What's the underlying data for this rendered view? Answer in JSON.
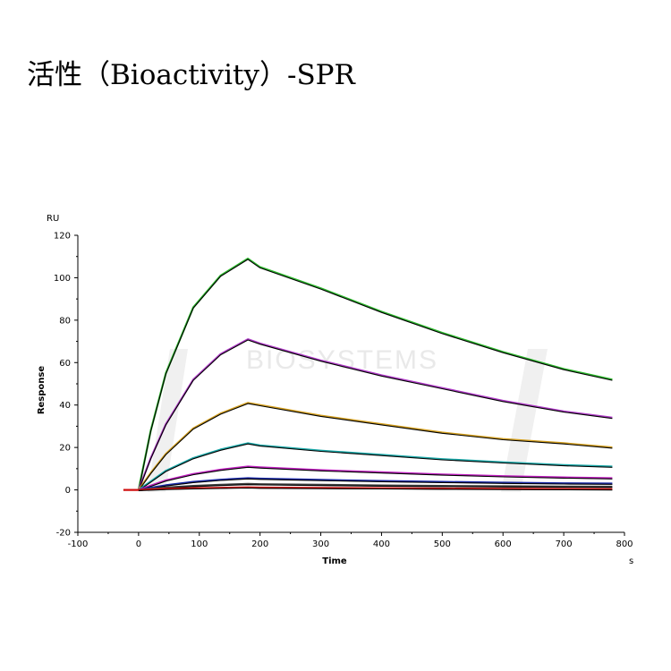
{
  "page": {
    "title": "活性（Bioactivity）-SPR"
  },
  "chart_data": {
    "type": "line",
    "title": "",
    "xlabel": "Time",
    "ylabel": "Response",
    "x_unit": "s",
    "y_unit": "RU",
    "xlim": [
      -100,
      800
    ],
    "ylim": [
      -20,
      120
    ],
    "xticks": [
      -100,
      0,
      100,
      200,
      300,
      400,
      500,
      600,
      700,
      800
    ],
    "yticks": [
      -20,
      0,
      20,
      40,
      60,
      80,
      100,
      120
    ],
    "grid": false,
    "legend": "none",
    "watermark": "BIOSYSTEMS",
    "association_phase": [
      0,
      180
    ],
    "dissociation_phase": [
      180,
      780
    ],
    "series": [
      {
        "color": "#2db82d",
        "fit_color": "#000000",
        "peak_response": 109,
        "end_response": 52,
        "points": [
          [
            0,
            0
          ],
          [
            20,
            28
          ],
          [
            45,
            55
          ],
          [
            90,
            86
          ],
          [
            135,
            101
          ],
          [
            180,
            109
          ],
          [
            200,
            105
          ],
          [
            300,
            95
          ],
          [
            400,
            84
          ],
          [
            500,
            74
          ],
          [
            600,
            65
          ],
          [
            700,
            57
          ],
          [
            780,
            52
          ]
        ]
      },
      {
        "color": "#b03cc8",
        "fit_color": "#000000",
        "peak_response": 71,
        "end_response": 34,
        "points": [
          [
            0,
            0
          ],
          [
            20,
            15
          ],
          [
            45,
            31
          ],
          [
            90,
            52
          ],
          [
            135,
            64
          ],
          [
            180,
            71
          ],
          [
            200,
            69
          ],
          [
            300,
            61
          ],
          [
            400,
            54
          ],
          [
            500,
            48
          ],
          [
            600,
            42
          ],
          [
            700,
            37
          ],
          [
            780,
            34
          ]
        ]
      },
      {
        "color": "#d4a020",
        "fit_color": "#000000",
        "peak_response": 41,
        "end_response": 20,
        "points": [
          [
            0,
            0
          ],
          [
            20,
            8
          ],
          [
            45,
            17
          ],
          [
            90,
            29
          ],
          [
            135,
            36
          ],
          [
            180,
            41
          ],
          [
            200,
            40
          ],
          [
            300,
            35
          ],
          [
            400,
            31
          ],
          [
            500,
            27
          ],
          [
            600,
            24
          ],
          [
            700,
            22
          ],
          [
            780,
            20
          ]
        ]
      },
      {
        "color": "#1aa8a8",
        "fit_color": "#000000",
        "peak_response": 22,
        "end_response": 11,
        "points": [
          [
            0,
            0
          ],
          [
            20,
            4
          ],
          [
            45,
            9
          ],
          [
            90,
            15
          ],
          [
            135,
            19
          ],
          [
            180,
            22
          ],
          [
            200,
            21
          ],
          [
            300,
            18.5
          ],
          [
            400,
            16.5
          ],
          [
            500,
            14.5
          ],
          [
            600,
            13
          ],
          [
            700,
            11.7
          ],
          [
            780,
            11
          ]
        ]
      },
      {
        "color": "#c020c0",
        "fit_color": "#000000",
        "peak_response": 11,
        "end_response": 5.5,
        "points": [
          [
            0,
            0
          ],
          [
            20,
            2
          ],
          [
            45,
            4.5
          ],
          [
            90,
            7.5
          ],
          [
            135,
            9.5
          ],
          [
            180,
            11
          ],
          [
            200,
            10.6
          ],
          [
            300,
            9.3
          ],
          [
            400,
            8.3
          ],
          [
            500,
            7.3
          ],
          [
            600,
            6.5
          ],
          [
            700,
            5.9
          ],
          [
            780,
            5.5
          ]
        ]
      },
      {
        "color": "#1a2aa8",
        "fit_color": "#000000",
        "peak_response": 5.5,
        "end_response": 3,
        "points": [
          [
            0,
            0
          ],
          [
            20,
            1
          ],
          [
            45,
            2.2
          ],
          [
            90,
            3.8
          ],
          [
            135,
            4.8
          ],
          [
            180,
            5.5
          ],
          [
            200,
            5.3
          ],
          [
            300,
            4.7
          ],
          [
            400,
            4.2
          ],
          [
            500,
            3.8
          ],
          [
            600,
            3.4
          ],
          [
            700,
            3.1
          ],
          [
            780,
            3
          ]
        ]
      },
      {
        "color": "#404040",
        "fit_color": "#000000",
        "peak_response": 2.8,
        "end_response": 1.5,
        "points": [
          [
            0,
            0
          ],
          [
            20,
            0.5
          ],
          [
            45,
            1.1
          ],
          [
            90,
            1.9
          ],
          [
            135,
            2.4
          ],
          [
            180,
            2.8
          ],
          [
            200,
            2.7
          ],
          [
            300,
            2.4
          ],
          [
            400,
            2.1
          ],
          [
            500,
            1.9
          ],
          [
            600,
            1.7
          ],
          [
            700,
            1.6
          ],
          [
            780,
            1.5
          ]
        ]
      },
      {
        "color": "#d01010",
        "fit_color": "#000000",
        "peak_response": 1.2,
        "end_response": 0.3,
        "points": [
          [
            -25,
            0
          ],
          [
            0,
            0
          ],
          [
            45,
            0.5
          ],
          [
            90,
            0.8
          ],
          [
            135,
            1
          ],
          [
            180,
            1.2
          ],
          [
            200,
            1.1
          ],
          [
            300,
            0.9
          ],
          [
            400,
            0.8
          ],
          [
            500,
            0.6
          ],
          [
            600,
            0.5
          ],
          [
            700,
            0.4
          ],
          [
            780,
            0.3
          ]
        ]
      }
    ]
  }
}
